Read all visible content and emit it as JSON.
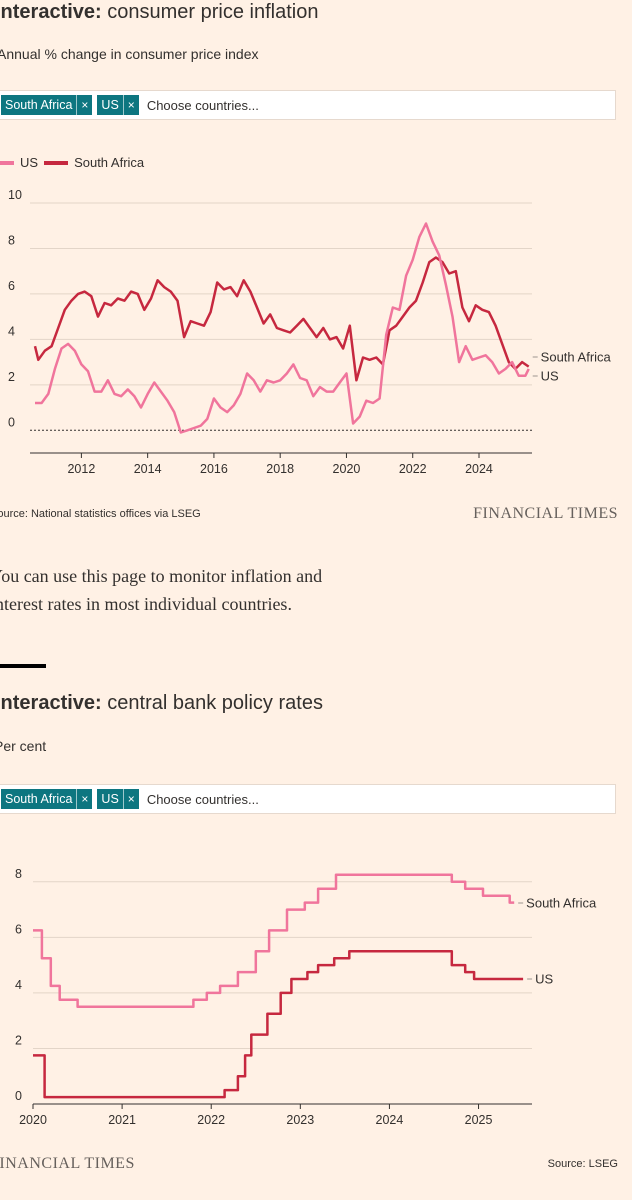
{
  "inflation": {
    "title_bold": "Interactive:",
    "title_rest": " consumer price inflation",
    "subtitle": "Annual % change in consumer price index",
    "chips": [
      {
        "label": "South Africa",
        "close": "×"
      },
      {
        "label": "US",
        "close": "×"
      }
    ],
    "placeholder": "Choose countries...",
    "legend": [
      {
        "label": "US",
        "color": "#f0759c"
      },
      {
        "label": "South Africa",
        "color": "#c6283f"
      }
    ],
    "source": "Source: National statistics offices via LSEG",
    "brand": "FINANCIAL TIMES"
  },
  "body_text": "You can use this page to monitor inflation and interest rates in most individual countries.",
  "rates": {
    "title_bold": "Interactive:",
    "title_rest": " central bank policy rates",
    "subtitle": "Per cent",
    "chips": [
      {
        "label": "South Africa",
        "close": "×"
      },
      {
        "label": "US",
        "close": "×"
      }
    ],
    "placeholder": "Choose countries...",
    "brand": "FINANCIAL TIMES",
    "source": "Source: LSEG"
  },
  "chart_data": [
    {
      "type": "line",
      "title": "Interactive: consumer price inflation",
      "ylabel": "Annual % change in consumer price index",
      "xlim": [
        2010.6,
        2025.6
      ],
      "ylim": [
        -1,
        10
      ],
      "x_ticks": [
        "2012",
        "2014",
        "2016",
        "2018",
        "2020",
        "2022",
        "2024"
      ],
      "x_tick_values": [
        2012,
        2014,
        2016,
        2018,
        2020,
        2022,
        2024
      ],
      "y_ticks": [
        "0",
        "2",
        "4",
        "6",
        "8",
        "10"
      ],
      "y_tick_values": [
        0,
        2,
        4,
        6,
        8,
        10
      ],
      "series": [
        {
          "name": "South Africa",
          "color": "#c6283f",
          "end_label": "South Africa",
          "points": [
            [
              2010.6,
              3.7
            ],
            [
              2010.7,
              3.1
            ],
            [
              2010.9,
              3.5
            ],
            [
              2011.1,
              3.7
            ],
            [
              2011.3,
              4.5
            ],
            [
              2011.5,
              5.3
            ],
            [
              2011.7,
              5.7
            ],
            [
              2011.9,
              6.0
            ],
            [
              2012.1,
              6.1
            ],
            [
              2012.3,
              5.9
            ],
            [
              2012.5,
              5.0
            ],
            [
              2012.7,
              5.6
            ],
            [
              2012.9,
              5.5
            ],
            [
              2013.1,
              5.8
            ],
            [
              2013.3,
              5.7
            ],
            [
              2013.5,
              6.1
            ],
            [
              2013.7,
              6.0
            ],
            [
              2013.9,
              5.3
            ],
            [
              2014.1,
              5.8
            ],
            [
              2014.3,
              6.6
            ],
            [
              2014.5,
              6.3
            ],
            [
              2014.7,
              6.1
            ],
            [
              2014.9,
              5.7
            ],
            [
              2015.1,
              4.1
            ],
            [
              2015.3,
              4.8
            ],
            [
              2015.5,
              4.7
            ],
            [
              2015.7,
              4.6
            ],
            [
              2015.9,
              5.2
            ],
            [
              2016.1,
              6.5
            ],
            [
              2016.3,
              6.2
            ],
            [
              2016.5,
              6.3
            ],
            [
              2016.7,
              5.9
            ],
            [
              2016.9,
              6.6
            ],
            [
              2017.1,
              6.1
            ],
            [
              2017.3,
              5.4
            ],
            [
              2017.5,
              4.7
            ],
            [
              2017.7,
              5.1
            ],
            [
              2017.9,
              4.5
            ],
            [
              2018.1,
              4.4
            ],
            [
              2018.3,
              4.3
            ],
            [
              2018.5,
              4.6
            ],
            [
              2018.7,
              4.9
            ],
            [
              2018.9,
              4.5
            ],
            [
              2019.1,
              4.1
            ],
            [
              2019.3,
              4.5
            ],
            [
              2019.5,
              4.0
            ],
            [
              2019.7,
              4.1
            ],
            [
              2019.9,
              3.6
            ],
            [
              2020.1,
              4.6
            ],
            [
              2020.3,
              2.2
            ],
            [
              2020.5,
              3.2
            ],
            [
              2020.7,
              3.1
            ],
            [
              2020.9,
              3.2
            ],
            [
              2021.1,
              2.9
            ],
            [
              2021.3,
              4.4
            ],
            [
              2021.5,
              4.6
            ],
            [
              2021.7,
              5.0
            ],
            [
              2021.9,
              5.4
            ],
            [
              2022.1,
              5.7
            ],
            [
              2022.3,
              6.5
            ],
            [
              2022.5,
              7.4
            ],
            [
              2022.7,
              7.6
            ],
            [
              2022.9,
              7.4
            ],
            [
              2023.1,
              6.9
            ],
            [
              2023.3,
              7.0
            ],
            [
              2023.5,
              5.4
            ],
            [
              2023.7,
              4.8
            ],
            [
              2023.9,
              5.5
            ],
            [
              2024.1,
              5.3
            ],
            [
              2024.3,
              5.2
            ],
            [
              2024.5,
              4.6
            ],
            [
              2024.7,
              3.8
            ],
            [
              2024.9,
              3.0
            ],
            [
              2025.1,
              2.7
            ],
            [
              2025.3,
              3.0
            ],
            [
              2025.5,
              2.8
            ]
          ]
        },
        {
          "name": "US",
          "color": "#f0759c",
          "end_label": "US",
          "points": [
            [
              2010.6,
              1.2
            ],
            [
              2010.8,
              1.2
            ],
            [
              2011.0,
              1.6
            ],
            [
              2011.2,
              2.7
            ],
            [
              2011.4,
              3.6
            ],
            [
              2011.6,
              3.8
            ],
            [
              2011.8,
              3.5
            ],
            [
              2012.0,
              2.9
            ],
            [
              2012.2,
              2.6
            ],
            [
              2012.4,
              1.7
            ],
            [
              2012.6,
              1.7
            ],
            [
              2012.8,
              2.2
            ],
            [
              2013.0,
              1.6
            ],
            [
              2013.2,
              1.5
            ],
            [
              2013.4,
              1.8
            ],
            [
              2013.6,
              1.5
            ],
            [
              2013.8,
              1.0
            ],
            [
              2014.0,
              1.6
            ],
            [
              2014.2,
              2.1
            ],
            [
              2014.4,
              1.7
            ],
            [
              2014.6,
              1.3
            ],
            [
              2014.8,
              0.8
            ],
            [
              2015.0,
              -0.1
            ],
            [
              2015.2,
              0.0
            ],
            [
              2015.4,
              0.1
            ],
            [
              2015.6,
              0.2
            ],
            [
              2015.8,
              0.5
            ],
            [
              2016.0,
              1.4
            ],
            [
              2016.2,
              1.0
            ],
            [
              2016.4,
              0.8
            ],
            [
              2016.6,
              1.1
            ],
            [
              2016.8,
              1.6
            ],
            [
              2017.0,
              2.5
            ],
            [
              2017.2,
              2.2
            ],
            [
              2017.4,
              1.7
            ],
            [
              2017.6,
              2.2
            ],
            [
              2017.8,
              2.1
            ],
            [
              2018.0,
              2.2
            ],
            [
              2018.2,
              2.5
            ],
            [
              2018.4,
              2.9
            ],
            [
              2018.6,
              2.3
            ],
            [
              2018.8,
              2.2
            ],
            [
              2019.0,
              1.5
            ],
            [
              2019.2,
              1.9
            ],
            [
              2019.4,
              1.7
            ],
            [
              2019.6,
              1.7
            ],
            [
              2019.8,
              2.1
            ],
            [
              2020.0,
              2.5
            ],
            [
              2020.2,
              0.3
            ],
            [
              2020.4,
              0.6
            ],
            [
              2020.6,
              1.3
            ],
            [
              2020.8,
              1.2
            ],
            [
              2021.0,
              1.4
            ],
            [
              2021.2,
              4.2
            ],
            [
              2021.4,
              5.4
            ],
            [
              2021.6,
              5.3
            ],
            [
              2021.8,
              6.8
            ],
            [
              2022.0,
              7.5
            ],
            [
              2022.2,
              8.5
            ],
            [
              2022.4,
              9.1
            ],
            [
              2022.6,
              8.3
            ],
            [
              2022.8,
              7.7
            ],
            [
              2023.0,
              6.4
            ],
            [
              2023.2,
              5.0
            ],
            [
              2023.4,
              3.0
            ],
            [
              2023.6,
              3.7
            ],
            [
              2023.8,
              3.1
            ],
            [
              2024.0,
              3.2
            ],
            [
              2024.2,
              3.3
            ],
            [
              2024.4,
              3.0
            ],
            [
              2024.6,
              2.5
            ],
            [
              2024.8,
              2.7
            ],
            [
              2025.0,
              3.0
            ],
            [
              2025.2,
              2.4
            ],
            [
              2025.4,
              2.4
            ],
            [
              2025.5,
              2.7
            ]
          ]
        }
      ]
    },
    {
      "type": "line",
      "title": "Interactive: central bank policy rates",
      "ylabel": "Per cent",
      "xlim": [
        2020,
        2025.6
      ],
      "ylim": [
        0,
        9
      ],
      "x_ticks": [
        "2020",
        "2021",
        "2022",
        "2023",
        "2024",
        "2025"
      ],
      "x_tick_values": [
        2020,
        2021,
        2022,
        2023,
        2024,
        2025
      ],
      "y_ticks": [
        "0",
        "2",
        "4",
        "6",
        "8"
      ],
      "y_tick_values": [
        0,
        2,
        4,
        6,
        8
      ],
      "series": [
        {
          "name": "South Africa",
          "color": "#f0759c",
          "end_label": "South Africa",
          "step": true,
          "points": [
            [
              2020.0,
              6.25
            ],
            [
              2020.1,
              5.25
            ],
            [
              2020.2,
              4.25
            ],
            [
              2020.3,
              3.75
            ],
            [
              2020.5,
              3.5
            ],
            [
              2021.8,
              3.75
            ],
            [
              2021.95,
              4.0
            ],
            [
              2022.1,
              4.25
            ],
            [
              2022.3,
              4.75
            ],
            [
              2022.5,
              5.5
            ],
            [
              2022.65,
              6.25
            ],
            [
              2022.85,
              7.0
            ],
            [
              2023.05,
              7.25
            ],
            [
              2023.2,
              7.75
            ],
            [
              2023.4,
              8.25
            ],
            [
              2024.7,
              8.0
            ],
            [
              2024.85,
              7.75
            ],
            [
              2025.05,
              7.5
            ],
            [
              2025.35,
              7.25
            ],
            [
              2025.4,
              7.25
            ]
          ]
        },
        {
          "name": "US",
          "color": "#c6283f",
          "end_label": "US",
          "step": true,
          "points": [
            [
              2020.0,
              1.75
            ],
            [
              2020.13,
              0.25
            ],
            [
              2022.15,
              0.5
            ],
            [
              2022.3,
              1.0
            ],
            [
              2022.38,
              1.75
            ],
            [
              2022.45,
              2.5
            ],
            [
              2022.63,
              3.25
            ],
            [
              2022.78,
              4.0
            ],
            [
              2022.9,
              4.5
            ],
            [
              2023.08,
              4.75
            ],
            [
              2023.2,
              5.0
            ],
            [
              2023.38,
              5.25
            ],
            [
              2023.55,
              5.5
            ],
            [
              2024.7,
              5.0
            ],
            [
              2024.85,
              4.75
            ],
            [
              2024.95,
              4.5
            ],
            [
              2025.5,
              4.5
            ]
          ]
        }
      ]
    }
  ]
}
